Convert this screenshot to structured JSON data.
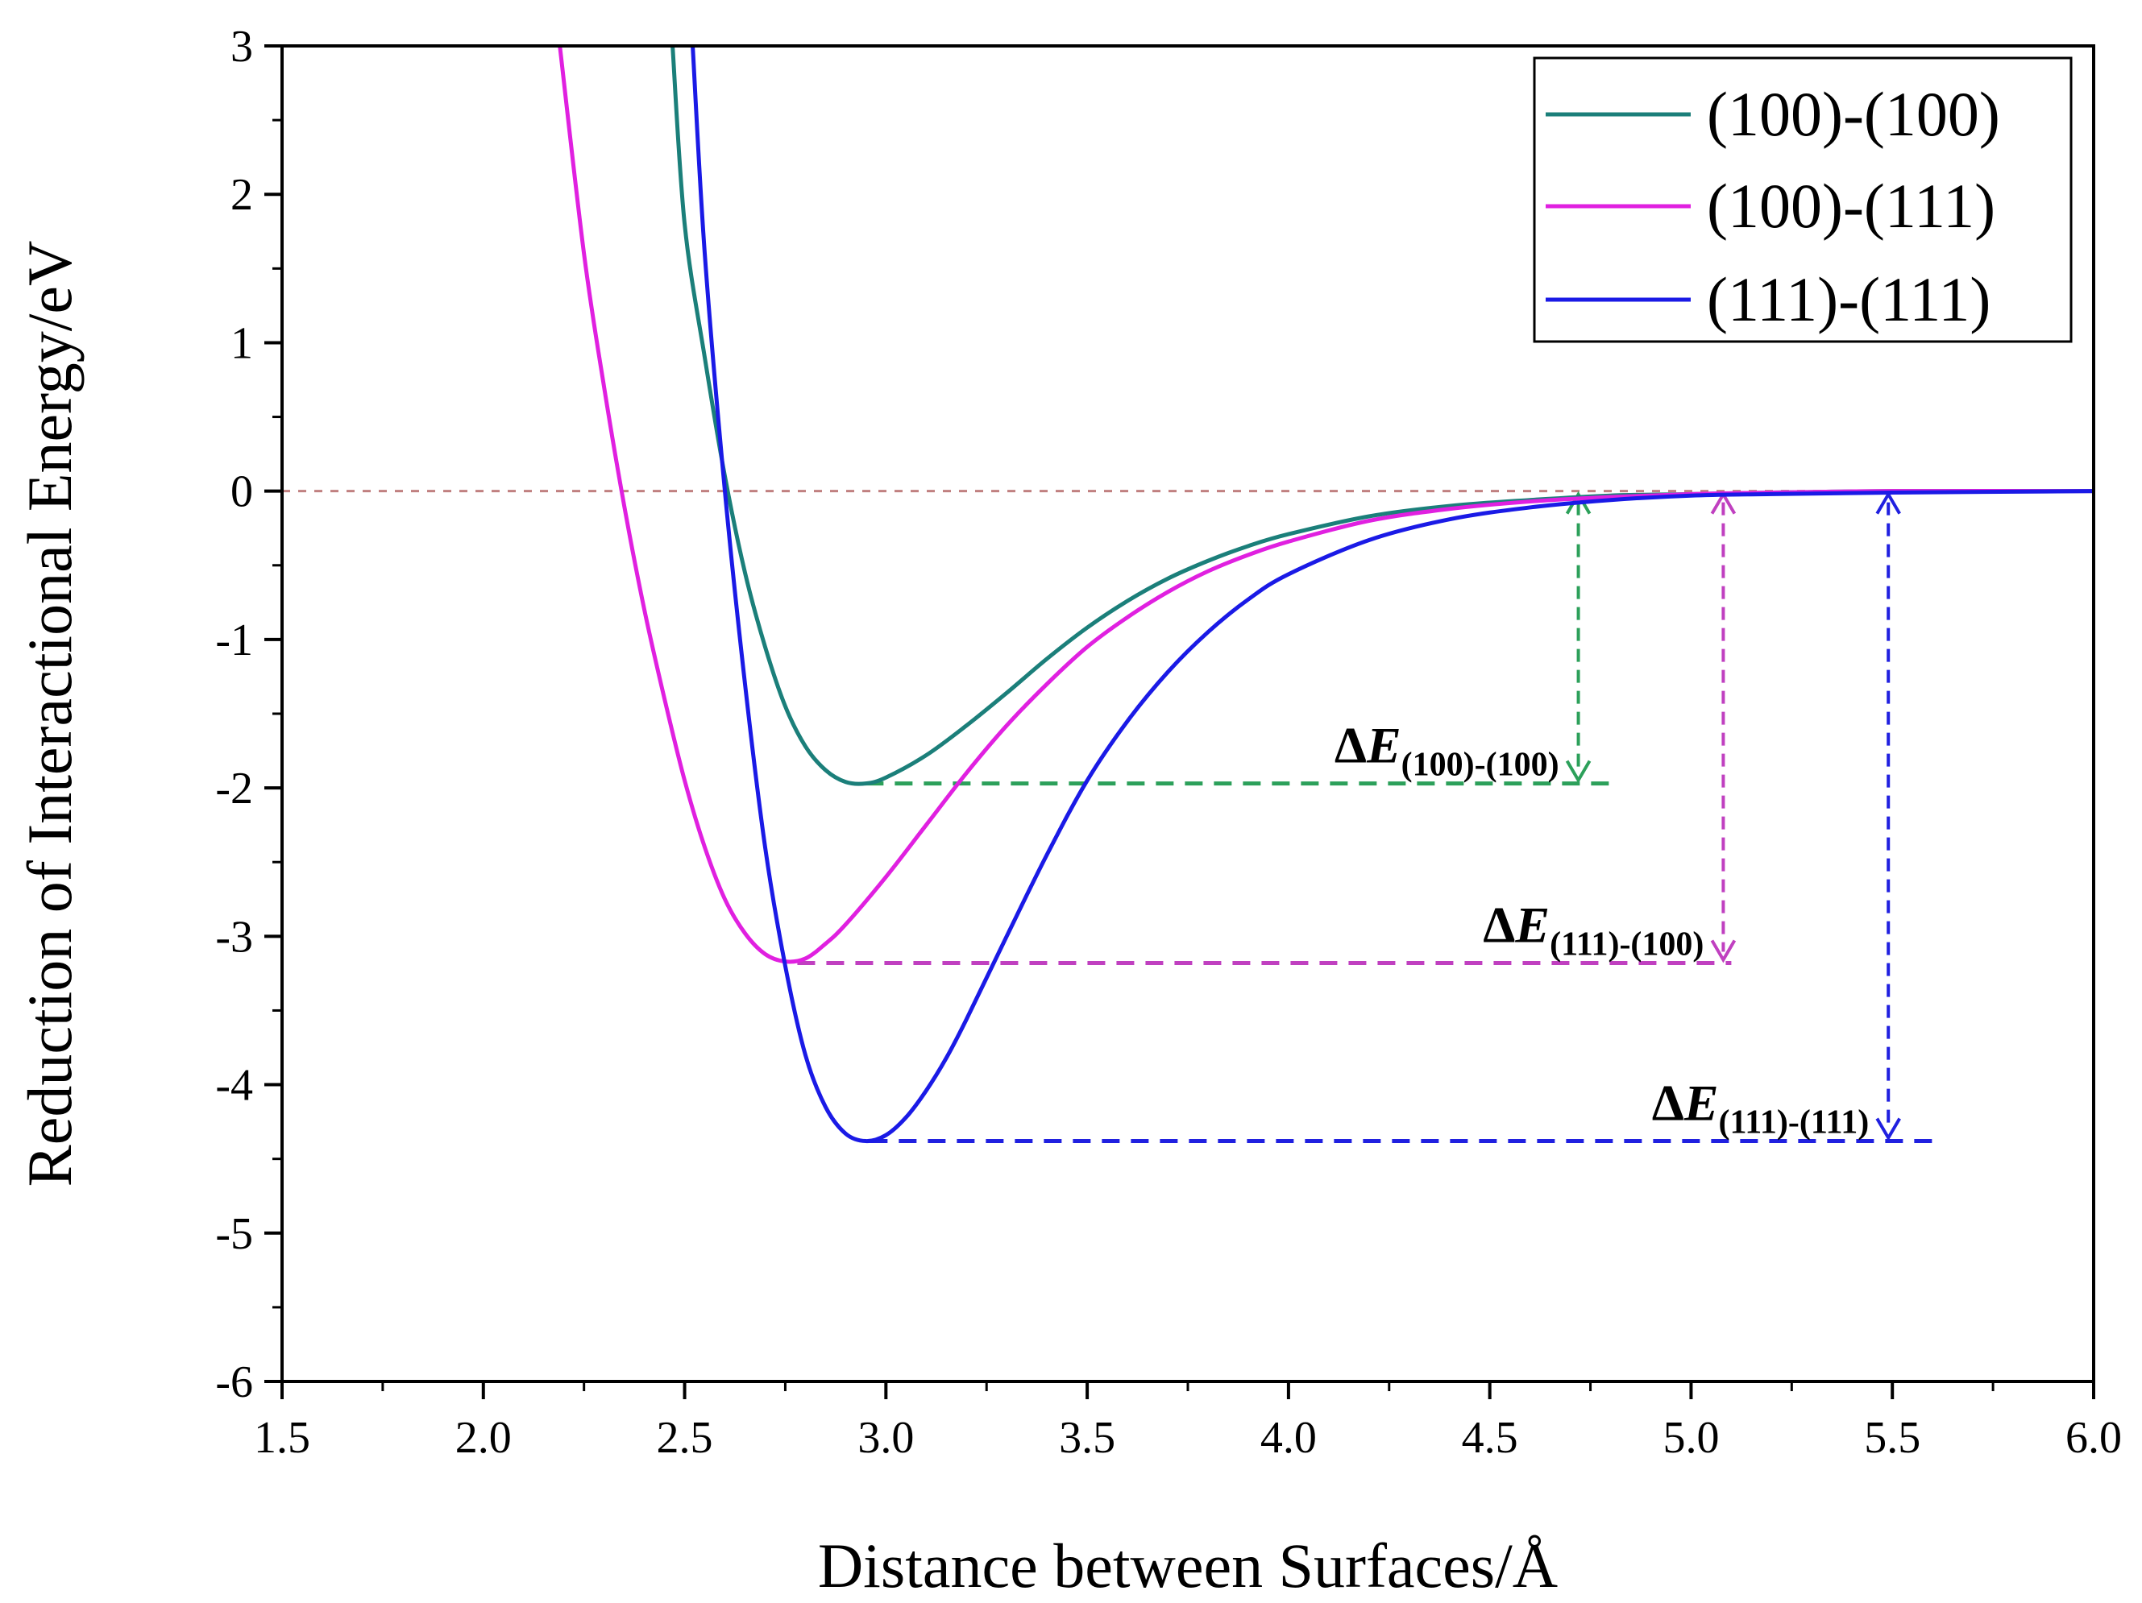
{
  "chart_data": {
    "type": "line",
    "title": "",
    "xlabel": "Distance between Surfaces/Å",
    "ylabel": "Reduction of Interactional Energy/eV",
    "xlim": [
      1.5,
      6.0
    ],
    "ylim": [
      -6,
      3
    ],
    "x_ticks": [
      "1.5",
      "2.0",
      "2.5",
      "3.0",
      "3.5",
      "4.0",
      "4.5",
      "5.0",
      "5.5",
      "6.0"
    ],
    "y_ticks": [
      "3",
      "2",
      "1",
      "0",
      "-1",
      "-2",
      "-3",
      "-4",
      "-5",
      "-6"
    ],
    "legend_position": "top-right",
    "reference_line": {
      "y": 0,
      "style": "dashed",
      "color": "#c08080"
    },
    "series": [
      {
        "name": "(100)-(100)",
        "color": "#1b7f7a",
        "x": [
          2.47,
          2.5,
          2.55,
          2.6,
          2.65,
          2.7,
          2.75,
          2.8,
          2.85,
          2.9,
          2.95,
          3.0,
          3.1,
          3.2,
          3.3,
          3.4,
          3.5,
          3.6,
          3.7,
          3.8,
          3.9,
          4.0,
          4.2,
          4.4,
          4.6,
          4.8,
          5.0,
          5.2,
          5.5,
          6.0
        ],
        "y": [
          3.0,
          1.8,
          0.9,
          0.1,
          -0.55,
          -1.05,
          -1.45,
          -1.72,
          -1.88,
          -1.96,
          -1.97,
          -1.93,
          -1.78,
          -1.58,
          -1.36,
          -1.13,
          -0.92,
          -0.74,
          -0.59,
          -0.47,
          -0.37,
          -0.29,
          -0.17,
          -0.1,
          -0.06,
          -0.03,
          -0.02,
          -0.01,
          0.0,
          0.0
        ]
      },
      {
        "name": "(100)-(111)",
        "color": "#e020e0",
        "x": [
          2.19,
          2.25,
          2.3,
          2.35,
          2.4,
          2.45,
          2.5,
          2.55,
          2.6,
          2.65,
          2.7,
          2.75,
          2.8,
          2.85,
          2.9,
          3.0,
          3.1,
          3.2,
          3.3,
          3.4,
          3.5,
          3.6,
          3.7,
          3.8,
          3.9,
          4.0,
          4.2,
          4.4,
          4.6,
          4.8,
          5.0,
          5.2,
          5.5,
          6.0
        ],
        "y": [
          3.0,
          1.6,
          0.7,
          -0.1,
          -0.8,
          -1.4,
          -1.95,
          -2.4,
          -2.75,
          -2.98,
          -3.12,
          -3.17,
          -3.15,
          -3.05,
          -2.92,
          -2.6,
          -2.25,
          -1.9,
          -1.58,
          -1.3,
          -1.05,
          -0.85,
          -0.68,
          -0.54,
          -0.43,
          -0.34,
          -0.2,
          -0.12,
          -0.07,
          -0.04,
          -0.02,
          -0.01,
          0.0,
          0.0
        ]
      },
      {
        "name": "(111)-(111)",
        "color": "#1a1ae6",
        "x": [
          2.52,
          2.55,
          2.6,
          2.65,
          2.7,
          2.75,
          2.8,
          2.85,
          2.9,
          2.95,
          3.0,
          3.05,
          3.1,
          3.15,
          3.2,
          3.3,
          3.4,
          3.5,
          3.6,
          3.7,
          3.8,
          3.9,
          4.0,
          4.2,
          4.4,
          4.6,
          4.8,
          5.0,
          5.2,
          5.5,
          6.0
        ],
        "y": [
          3.0,
          1.6,
          0.0,
          -1.3,
          -2.4,
          -3.2,
          -3.8,
          -4.15,
          -4.33,
          -4.38,
          -4.34,
          -4.22,
          -4.04,
          -3.82,
          -3.56,
          -3.0,
          -2.45,
          -1.95,
          -1.55,
          -1.22,
          -0.95,
          -0.73,
          -0.56,
          -0.33,
          -0.19,
          -0.11,
          -0.06,
          -0.03,
          -0.02,
          -0.01,
          0.0
        ]
      }
    ],
    "annotations": [
      {
        "label_main": "ΔE",
        "label_sub": "(100)-(100)",
        "color": "#2ca05a",
        "min_x": 2.95,
        "min_y": -1.97,
        "arrow_x": 4.72,
        "h_end_x": 4.82
      },
      {
        "label_main": "ΔE",
        "label_sub": "(111)-(100)",
        "color": "#c040c0",
        "min_x": 2.78,
        "min_y": -3.18,
        "arrow_x": 5.08,
        "h_end_x": 5.1
      },
      {
        "label_main": "ΔE",
        "label_sub": "(111)-(111)",
        "color": "#2020e0",
        "min_x": 2.96,
        "min_y": -4.38,
        "arrow_x": 5.49,
        "h_end_x": 5.6
      }
    ]
  }
}
